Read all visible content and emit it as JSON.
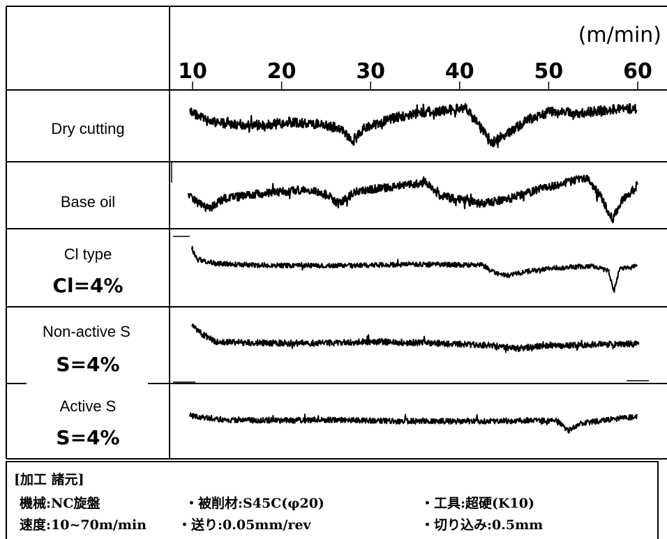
{
  "chart_data": {
    "type": "line",
    "unit_label": "(m/min)",
    "x_ticks": [
      "10",
      "20",
      "30",
      "40",
      "50",
      "60"
    ],
    "xlim": [
      10,
      60
    ],
    "rows": [
      {
        "name": "Dry cutting",
        "conc": ""
      },
      {
        "name": "Base oil",
        "conc": ""
      },
      {
        "name": "Cl type",
        "conc": "Cl=4%"
      },
      {
        "name": "Non-active S",
        "conc": "S=4%"
      },
      {
        "name": "Active S",
        "conc": "S=4%"
      }
    ]
  },
  "conditions": {
    "title": "[加工 諸元]",
    "line1": {
      "machine": "機械:NC旋盤",
      "material": "・被削材:S45C(φ20)",
      "tool": "・工具:超硬(K10)"
    },
    "line2": {
      "speed": "速度:10~70m/min",
      "feed": "・送り:0.05mm/rev",
      "depth": "・切り込み:0.5mm"
    }
  }
}
